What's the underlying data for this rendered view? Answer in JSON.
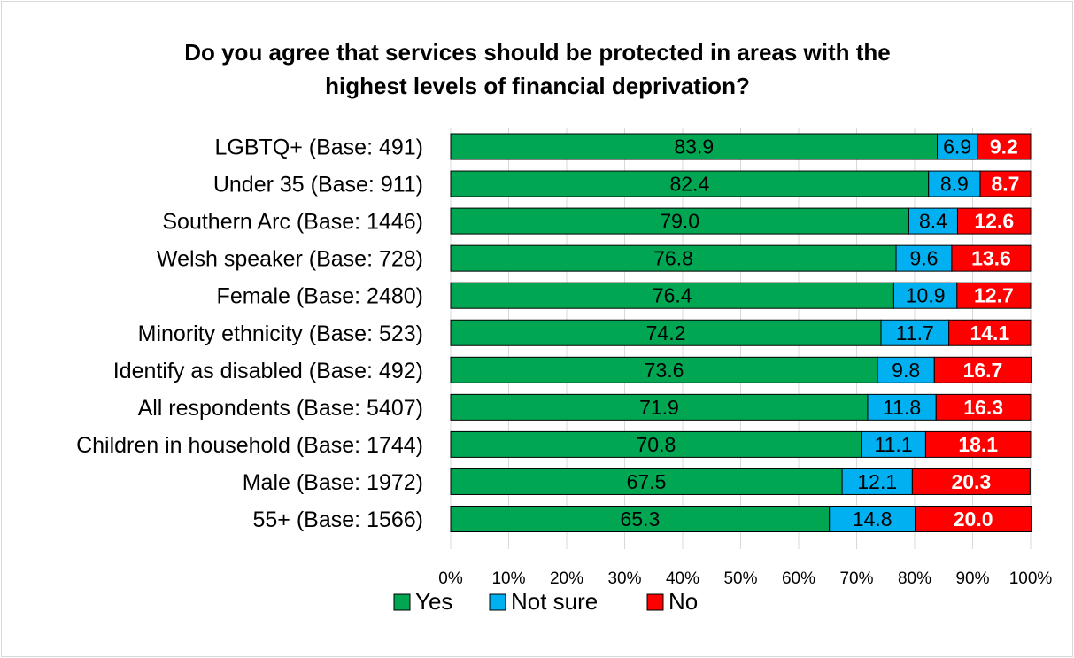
{
  "chart_data": {
    "type": "bar",
    "orientation": "horizontal",
    "stacked": true,
    "title_lines": [
      "Do you agree that services should be protected in areas with the",
      "highest levels of financial deprivation?"
    ],
    "categories": [
      "LGBTQ+ (Base: 491)",
      "Under 35 (Base: 911)",
      "Southern Arc (Base: 1446)",
      "Welsh speaker (Base: 728)",
      "Female (Base: 2480)",
      "Minority ethnicity (Base: 523)",
      "Identify as disabled (Base: 492)",
      "All respondents (Base: 5407)",
      "Children in household (Base: 1744)",
      "Male (Base: 1972)",
      "55+ (Base: 1566)"
    ],
    "series": [
      {
        "name": "Yes",
        "color": "#00a651",
        "label_class": "val-yes",
        "values": [
          83.9,
          82.4,
          79.0,
          76.8,
          76.4,
          74.2,
          73.6,
          71.9,
          70.8,
          67.5,
          65.3
        ],
        "labels": [
          "83.9",
          "82.4",
          "79.0",
          "76.8",
          "76.4",
          "74.2",
          "73.6",
          "71.9",
          "70.8",
          "67.5",
          "65.3"
        ]
      },
      {
        "name": "Not sure",
        "color": "#00b0f0",
        "label_class": "val-notsure",
        "values": [
          6.9,
          8.9,
          8.4,
          9.6,
          10.9,
          11.7,
          9.8,
          11.8,
          11.1,
          12.1,
          14.8
        ],
        "labels": [
          "6.9",
          "8.9",
          "8.4",
          "9.6",
          "10.9",
          "11.7",
          "9.8",
          "11.8",
          "11.1",
          "12.1",
          "14.8"
        ]
      },
      {
        "name": "No",
        "color": "#ff0000",
        "label_class": "val-no",
        "values": [
          9.2,
          8.7,
          12.6,
          13.6,
          12.7,
          14.1,
          16.7,
          16.3,
          18.1,
          20.3,
          20.0
        ],
        "labels": [
          "9.2",
          "8.7",
          "12.6",
          "13.6",
          "12.7",
          "14.1",
          "16.7",
          "16.3",
          "18.1",
          "20.3",
          "20.0"
        ]
      }
    ],
    "xlim": [
      0,
      100
    ],
    "x_ticks": [
      0,
      10,
      20,
      30,
      40,
      50,
      60,
      70,
      80,
      90,
      100
    ],
    "x_tick_labels": [
      "0%",
      "10%",
      "20%",
      "30%",
      "40%",
      "50%",
      "60%",
      "70%",
      "80%",
      "90%",
      "100%"
    ],
    "grid": true,
    "legend_position": "bottom"
  }
}
